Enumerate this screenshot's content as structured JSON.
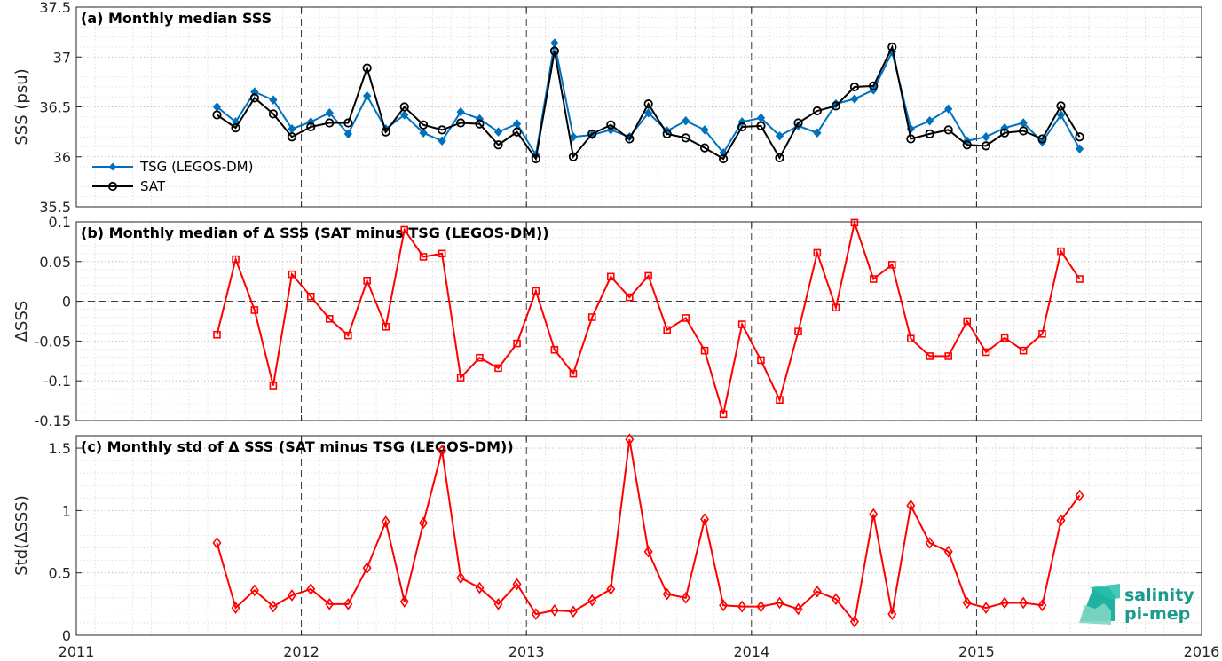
{
  "chart_data": [
    {
      "type": "line",
      "title": "(a) Monthly median SSS",
      "xlabel": "",
      "ylabel": "SSS (psu)",
      "xlim": [
        2011,
        2016
      ],
      "ylim": [
        35.5,
        37.5
      ],
      "yticks": [
        "35.5",
        "36",
        "36.5",
        "37",
        "37.5"
      ],
      "xticks": [
        "2011",
        "2012",
        "2013",
        "2014",
        "2015",
        "2016"
      ],
      "grid": true,
      "legend_placement": "bottom-left",
      "x": [
        2011.625,
        2011.708,
        2011.792,
        2011.875,
        2011.958,
        2012.042,
        2012.125,
        2012.208,
        2012.292,
        2012.375,
        2012.458,
        2012.542,
        2012.625,
        2012.708,
        2012.792,
        2012.875,
        2012.958,
        2013.042,
        2013.125,
        2013.208,
        2013.292,
        2013.375,
        2013.458,
        2013.542,
        2013.625,
        2013.708,
        2013.792,
        2013.875,
        2013.958,
        2014.042,
        2014.125,
        2014.208,
        2014.292,
        2014.375,
        2014.458,
        2014.542,
        2014.625,
        2014.708,
        2014.792,
        2014.875,
        2014.958,
        2015.042,
        2015.125,
        2015.208,
        2015.292,
        2015.375,
        2015.458
      ],
      "series": [
        {
          "name": "TSG (LEGOS-DM)",
          "color": "#0072bd",
          "marker": "diamond-filled",
          "values": [
            36.5,
            36.35,
            36.65,
            36.57,
            36.28,
            36.35,
            36.44,
            36.23,
            36.61,
            36.28,
            36.42,
            36.24,
            36.16,
            36.45,
            36.38,
            36.25,
            36.33,
            36.02,
            37.14,
            36.2,
            36.22,
            36.27,
            36.2,
            36.44,
            36.26,
            36.36,
            36.27,
            36.04,
            36.35,
            36.39,
            36.21,
            36.31,
            36.24,
            36.53,
            36.58,
            36.67,
            37.05,
            36.28,
            36.36,
            36.48,
            36.16,
            36.2,
            36.29,
            36.34,
            36.15,
            36.42,
            36.08
          ]
        },
        {
          "name": "SAT",
          "color": "#000000",
          "marker": "circle-open",
          "values": [
            36.42,
            36.29,
            36.59,
            36.43,
            36.2,
            36.3,
            36.34,
            36.34,
            36.89,
            36.25,
            36.5,
            36.32,
            36.27,
            36.34,
            36.33,
            36.12,
            36.25,
            35.98,
            37.06,
            36.0,
            36.23,
            36.32,
            36.18,
            36.53,
            36.23,
            36.19,
            36.09,
            35.98,
            36.3,
            36.31,
            35.99,
            36.34,
            36.46,
            36.51,
            36.7,
            36.71,
            37.1,
            36.18,
            36.23,
            36.27,
            36.12,
            36.11,
            36.24,
            36.26,
            36.18,
            36.51,
            36.2
          ]
        }
      ]
    },
    {
      "type": "line",
      "title": "(b) Monthly median of Δ SSS (SAT minus TSG (LEGOS-DM))",
      "xlabel": "",
      "ylabel": "ΔSSS",
      "xlim": [
        2011,
        2016
      ],
      "ylim": [
        -0.15,
        0.1
      ],
      "yticks": [
        "-0.15",
        "-0.1",
        "-0.05",
        "0",
        "0.05",
        "0.1"
      ],
      "grid": true,
      "zero_line": "dashed",
      "x": [
        2011.625,
        2011.708,
        2011.792,
        2011.875,
        2011.958,
        2012.042,
        2012.125,
        2012.208,
        2012.292,
        2012.375,
        2012.458,
        2012.542,
        2012.625,
        2012.708,
        2012.792,
        2012.875,
        2012.958,
        2013.042,
        2013.125,
        2013.208,
        2013.292,
        2013.375,
        2013.458,
        2013.542,
        2013.625,
        2013.708,
        2013.792,
        2013.875,
        2013.958,
        2014.042,
        2014.125,
        2014.208,
        2014.292,
        2014.375,
        2014.458,
        2014.542,
        2014.625,
        2014.708,
        2014.792,
        2014.875,
        2014.958,
        2015.042,
        2015.125,
        2015.208,
        2015.292,
        2015.375,
        2015.458
      ],
      "series": [
        {
          "name": "",
          "color": "#ff0000",
          "marker": "square-open",
          "values": [
            -0.042,
            0.053,
            -0.011,
            -0.106,
            0.034,
            0.006,
            -0.022,
            -0.043,
            0.026,
            -0.032,
            0.09,
            0.056,
            0.06,
            -0.096,
            -0.071,
            -0.084,
            -0.053,
            0.013,
            -0.061,
            -0.091,
            -0.02,
            0.031,
            0.005,
            0.032,
            -0.036,
            -0.021,
            -0.062,
            -0.142,
            -0.029,
            -0.074,
            -0.124,
            -0.038,
            0.061,
            -0.008,
            0.099,
            0.028,
            0.046,
            -0.047,
            -0.069,
            -0.069,
            -0.025,
            -0.064,
            -0.046,
            -0.062,
            -0.041,
            0.063,
            0.028
          ]
        }
      ]
    },
    {
      "type": "line",
      "title": "(c) Monthly std of Δ SSS (SAT minus TSG (LEGOS-DM))",
      "xlabel": "",
      "ylabel": "Std(ΔSSS)",
      "xlim": [
        2011,
        2016
      ],
      "ylim": [
        0,
        1.6
      ],
      "yticks": [
        "0",
        "0.5",
        "1",
        "1.5"
      ],
      "grid": true,
      "x": [
        2011.625,
        2011.708,
        2011.792,
        2011.875,
        2011.958,
        2012.042,
        2012.125,
        2012.208,
        2012.292,
        2012.375,
        2012.458,
        2012.542,
        2012.625,
        2012.708,
        2012.792,
        2012.875,
        2012.958,
        2013.042,
        2013.125,
        2013.208,
        2013.292,
        2013.375,
        2013.458,
        2013.542,
        2013.625,
        2013.708,
        2013.792,
        2013.875,
        2013.958,
        2014.042,
        2014.125,
        2014.208,
        2014.292,
        2014.375,
        2014.458,
        2014.542,
        2014.625,
        2014.708,
        2014.792,
        2014.875,
        2014.958,
        2015.042,
        2015.125,
        2015.208,
        2015.292,
        2015.375,
        2015.458
      ],
      "series": [
        {
          "name": "",
          "color": "#ff0000",
          "marker": "diamond-open",
          "values": [
            0.74,
            0.22,
            0.36,
            0.23,
            0.32,
            0.37,
            0.25,
            0.25,
            0.54,
            0.91,
            0.27,
            0.9,
            1.48,
            0.46,
            0.38,
            0.25,
            0.41,
            0.17,
            0.2,
            0.19,
            0.28,
            0.37,
            1.57,
            0.67,
            0.33,
            0.3,
            0.93,
            0.24,
            0.23,
            0.23,
            0.26,
            0.21,
            0.35,
            0.29,
            0.11,
            0.97,
            0.17,
            1.04,
            0.74,
            0.67,
            0.26,
            0.22,
            0.26,
            0.26,
            0.24,
            0.92,
            1.12
          ]
        }
      ]
    }
  ],
  "logo": {
    "line1": "salinity",
    "line2": "pi-mep"
  }
}
